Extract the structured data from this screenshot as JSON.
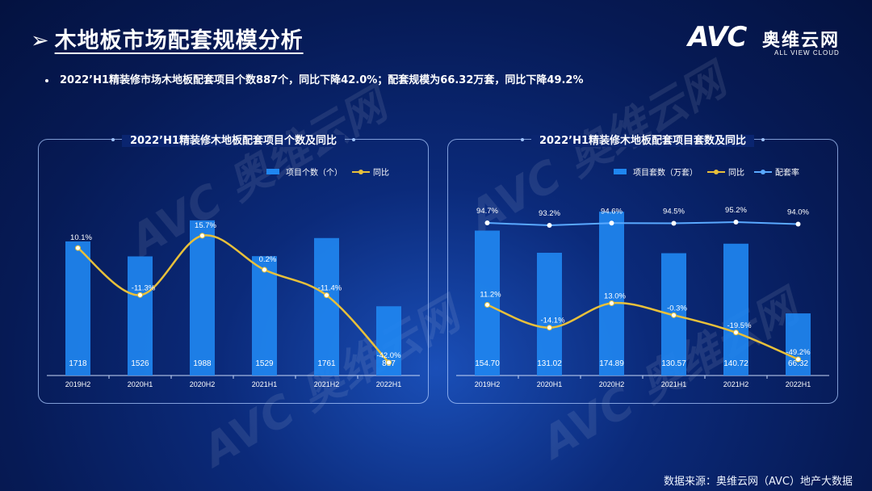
{
  "header": {
    "title": "木地板市场配套规模分析",
    "logo_text": "AVC",
    "logo_cn": "奥维云网",
    "logo_en": "ALL VIEW CLOUD"
  },
  "summary": "2022’H1精装修市场木地板配套项目个数887个，同比下降42.0%；配套规模为66.32万套，同比下降49.2%",
  "source": "数据来源：奥维云网（AVC）地产大数据",
  "watermark": "AVC 奥维云网",
  "colors": {
    "bar": "#1f86f0",
    "yoy": "#e8c03a",
    "rate": "#5aa9ff"
  },
  "chart_data": [
    {
      "type": "bar",
      "title": "2022’H1精装修木地板配套项目个数及同比",
      "categories": [
        "2019H2",
        "2020H1",
        "2020H2",
        "2021H1",
        "2021H2",
        "2022H1"
      ],
      "series": [
        {
          "name": "项目个数（个）",
          "kind": "bar",
          "values": [
            1718,
            1526,
            1988,
            1529,
            1761,
            887
          ],
          "labels": [
            "1718",
            "1526",
            "1988",
            "1529",
            "1761",
            "887"
          ]
        },
        {
          "name": "同比",
          "kind": "line",
          "values": [
            10.1,
            -11.3,
            15.7,
            0.2,
            -11.4,
            -42.0
          ],
          "labels": [
            "10.1%",
            "-11.3%",
            "15.7%",
            "0.2%",
            "-11.4%",
            "-42.0%"
          ]
        }
      ],
      "bar_ylim": [
        0,
        2400
      ],
      "line_ylim": [
        -45,
        30
      ],
      "legend": "top-right",
      "grid": false
    },
    {
      "type": "bar",
      "title": "2022’H1精装修木地板配套项目套数及同比",
      "categories": [
        "2019H2",
        "2020H1",
        "2020H2",
        "2021H1",
        "2021H2",
        "2022H1"
      ],
      "series": [
        {
          "name": "项目套数（万套）",
          "kind": "bar",
          "values": [
            154.7,
            131.02,
            174.89,
            130.57,
            140.72,
            66.32
          ],
          "labels": [
            "154.70",
            "131.02",
            "174.89",
            "130.57",
            "140.72",
            "66.32"
          ]
        },
        {
          "name": "同比",
          "kind": "line",
          "values": [
            11.2,
            -14.1,
            13.0,
            -0.3,
            -19.5,
            -49.2
          ],
          "labels": [
            "11.2%",
            "-14.1%",
            "13.0%",
            "-0.3%",
            "-19.5%",
            "-49.2%"
          ]
        },
        {
          "name": "配套率",
          "kind": "line",
          "values": [
            94.7,
            93.2,
            94.6,
            94.5,
            95.2,
            94.0
          ],
          "labels": [
            "94.7%",
            "93.2%",
            "94.6%",
            "94.5%",
            "95.2%",
            "94.0%"
          ]
        }
      ],
      "bar_ylim": [
        0,
        200
      ],
      "line_ylim": [
        -60,
        60
      ],
      "rate_ylim": [
        0,
        100
      ],
      "legend": "top-right",
      "grid": false
    }
  ]
}
